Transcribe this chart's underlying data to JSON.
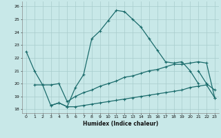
{
  "xlabel": "Humidex (Indice chaleur)",
  "background_color": "#c8e8e8",
  "grid_color": "#a8cccc",
  "line_color": "#1a6b6b",
  "xlim": [
    -0.5,
    23.5
  ],
  "ylim": [
    17.7,
    26.4
  ],
  "yticks": [
    18,
    19,
    20,
    21,
    22,
    23,
    24,
    25,
    26
  ],
  "xticks": [
    0,
    1,
    2,
    3,
    4,
    5,
    6,
    7,
    8,
    9,
    10,
    11,
    12,
    13,
    14,
    15,
    16,
    17,
    18,
    19,
    20,
    21,
    22,
    23
  ],
  "line1_x": [
    0,
    1,
    2,
    3,
    4,
    5,
    6,
    7,
    8,
    9,
    10,
    11,
    12,
    13,
    14,
    15,
    16,
    17,
    18,
    19,
    20,
    21
  ],
  "line1_y": [
    22.5,
    21.0,
    19.9,
    18.3,
    18.5,
    18.2,
    19.7,
    20.7,
    23.5,
    24.1,
    24.9,
    25.7,
    25.6,
    25.0,
    24.4,
    23.5,
    22.6,
    21.7,
    21.6,
    21.7,
    21.0,
    20.0
  ],
  "line2_x": [
    21,
    22,
    23
  ],
  "line2_y": [
    21.0,
    20.0,
    19.5
  ],
  "line3_x": [
    1,
    2,
    3,
    4,
    5,
    6,
    7,
    8,
    9,
    10,
    11,
    12,
    13,
    14,
    15,
    16,
    17,
    18,
    19,
    20,
    21,
    22,
    23
  ],
  "line3_y": [
    19.9,
    19.9,
    19.9,
    20.0,
    18.6,
    19.0,
    19.3,
    19.5,
    19.8,
    20.0,
    20.2,
    20.5,
    20.6,
    20.8,
    21.0,
    21.1,
    21.3,
    21.5,
    21.5,
    21.6,
    21.7,
    21.6,
    18.9
  ],
  "line4_x": [
    3,
    4,
    5,
    6,
    7,
    8,
    9,
    10,
    11,
    12,
    13,
    14,
    15,
    16,
    17,
    18,
    19,
    20,
    21,
    22,
    23
  ],
  "line4_y": [
    18.3,
    18.5,
    18.2,
    18.2,
    18.3,
    18.4,
    18.5,
    18.6,
    18.7,
    18.8,
    18.9,
    19.0,
    19.1,
    19.2,
    19.3,
    19.4,
    19.5,
    19.7,
    19.8,
    19.9,
    18.9
  ]
}
